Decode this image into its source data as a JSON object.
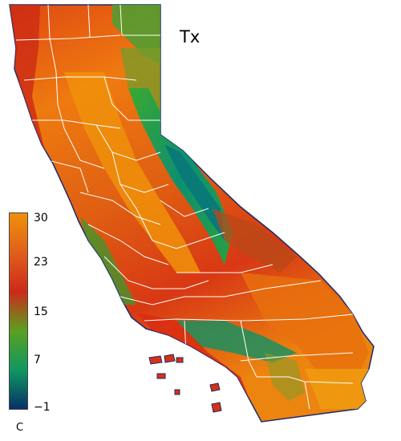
{
  "map": {
    "title": "Tx",
    "variable_unit": "C",
    "colors": {
      "hot": "#f0900a",
      "warm": "#e85a10",
      "mid": "#d42a12",
      "cool": "#2aa030",
      "cold": "#0f8c6e",
      "coldest": "#0a3a6e",
      "county_lines": "#ffffff",
      "outline": "#1a2a6a"
    }
  },
  "colorbar": {
    "ticks": [
      "30",
      "23",
      "15",
      "7",
      "−1"
    ],
    "stops": [
      "#f0900a",
      "#e0601a",
      "#cc2a1a",
      "#5aa020",
      "#109860",
      "#08306a"
    ]
  }
}
